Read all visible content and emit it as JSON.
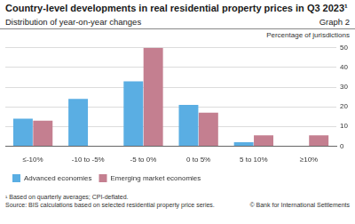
{
  "chart_data": {
    "type": "bar",
    "title": "Country-level developments in real residential property prices in Q3 2023¹",
    "subtitle": "Distribution of year-on-year changes",
    "graph_label": "Graph 2",
    "y_label": "Percentage of jurisdictions",
    "categories": [
      "≤-10%",
      "-10 to -5%",
      "-5 to 0%",
      "0 to 5%",
      "5 to 10%",
      "≥10%"
    ],
    "series": [
      {
        "name": "Advanced economies",
        "color": "#5aaee3",
        "values": [
          14,
          24,
          33,
          21,
          2,
          0
        ]
      },
      {
        "name": "Emerging market economies",
        "color": "#c47f90",
        "values": [
          13,
          0,
          50,
          17,
          5.5,
          5.5
        ]
      }
    ],
    "ylim": [
      0,
      50
    ],
    "yticks": [
      0,
      10,
      20,
      30,
      40,
      50
    ],
    "grid": true,
    "legend": "bottom",
    "footnote": "¹ Based on quarterly averages; CPI-deflated.",
    "source": "Source: BIS calculations based on selected residential property price series.",
    "copyright": "© Bank for International Settlements"
  }
}
